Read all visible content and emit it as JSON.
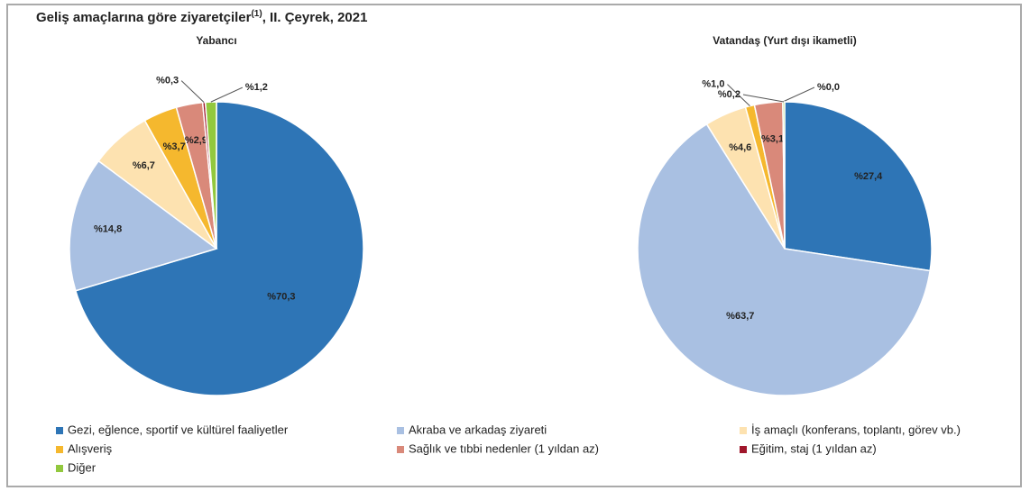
{
  "title": "Geliş amaçlarına göre ziyaretçiler",
  "title_superscript": "(1)",
  "title_suffix": ", II. Çeyrek, 2021",
  "chart_data": [
    {
      "type": "pie",
      "title": "Yabancı",
      "categories": [
        "Gezi, eğlence, sportif ve kültürel faaliyetler",
        "Akraba ve arkadaş ziyareti",
        "İş amaçlı (konferans, toplantı, görev vb.)",
        "Alışveriş",
        "Sağlık ve tıbbi nedenler (1 yıldan az)",
        "Eğitim, staj (1 yıldan az)",
        "Diğer"
      ],
      "values": [
        70.3,
        14.8,
        6.7,
        3.7,
        2.9,
        0.3,
        1.2
      ],
      "value_labels": [
        "%70,3",
        "%14,8",
        "%6,7",
        "%3,7",
        "%2,9",
        "%0,3",
        "%1,2"
      ],
      "colors": [
        "#2e75b6",
        "#a9c0e2",
        "#fde2b0",
        "#f5b82e",
        "#d9897a",
        "#a0162b",
        "#92c83e"
      ]
    },
    {
      "type": "pie",
      "title": "Vatandaş (Yurt dışı ikametli)",
      "categories": [
        "Gezi, eğlence, sportif ve kültürel faaliyetler",
        "Akraba ve arkadaş ziyareti",
        "İş amaçlı (konferans, toplantı, görev vb.)",
        "Alışveriş",
        "Sağlık ve tıbbi nedenler (1 yıldan az)",
        "Eğitim, staj (1 yıldan az)",
        "Diğer"
      ],
      "values": [
        27.4,
        63.7,
        4.6,
        1.0,
        3.1,
        0.0,
        0.2
      ],
      "value_labels": [
        "%27,4",
        "%63,7",
        "%4,6",
        "%1,0",
        "%3,1",
        "%0,0",
        "%0,2"
      ],
      "colors": [
        "#2e75b6",
        "#a9c0e2",
        "#fde2b0",
        "#f5b82e",
        "#d9897a",
        "#a0162b",
        "#92c83e"
      ]
    }
  ]
}
